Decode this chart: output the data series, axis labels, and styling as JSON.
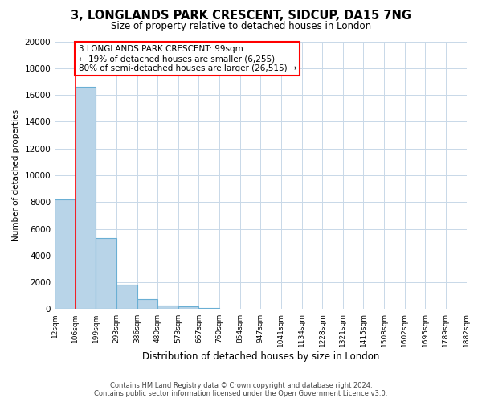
{
  "title": "3, LONGLANDS PARK CRESCENT, SIDCUP, DA15 7NG",
  "subtitle": "Size of property relative to detached houses in London",
  "xlabel": "Distribution of detached houses by size in London",
  "ylabel": "Number of detached properties",
  "bar_heights": [
    8200,
    16600,
    5300,
    1800,
    750,
    270,
    200,
    100
  ],
  "categories": [
    "12sqm",
    "106sqm",
    "199sqm",
    "293sqm",
    "386sqm",
    "480sqm",
    "573sqm",
    "667sqm",
    "760sqm",
    "854sqm",
    "947sqm",
    "1041sqm",
    "1134sqm",
    "1228sqm",
    "1321sqm",
    "1415sqm",
    "1508sqm",
    "1602sqm",
    "1695sqm",
    "1789sqm",
    "1882sqm"
  ],
  "bar_color": "#b8d4e8",
  "bar_edge_color": "#6aafd4",
  "red_line_x": 1.0,
  "ylim": [
    0,
    20000
  ],
  "yticks": [
    0,
    2000,
    4000,
    6000,
    8000,
    10000,
    12000,
    14000,
    16000,
    18000,
    20000
  ],
  "annotation_line1": "3 LONGLANDS PARK CRESCENT: 99sqm",
  "annotation_line2": "← 19% of detached houses are smaller (6,255)",
  "annotation_line3": "80% of semi-detached houses are larger (26,515) →",
  "footer_line1": "Contains HM Land Registry data © Crown copyright and database right 2024.",
  "footer_line2": "Contains public sector information licensed under the Open Government Licence v3.0.",
  "background_color": "#ffffff",
  "grid_color": "#c8d8e8"
}
